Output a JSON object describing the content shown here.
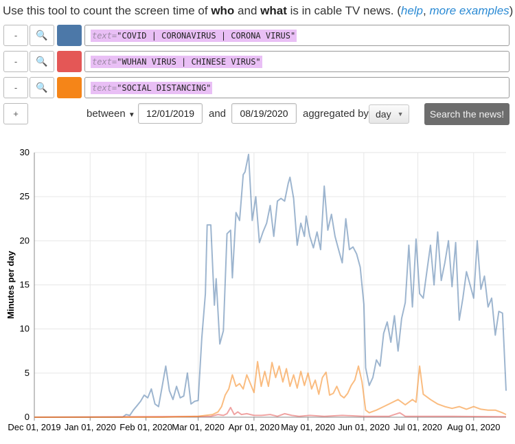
{
  "intro": {
    "prefix": "Use this tool to count the screen time of ",
    "who": "who",
    "and": " and ",
    "what": "what",
    "suffix": " is in cable TV news. (",
    "help_link": "help",
    "comma": ", ",
    "examples_link": "more examples",
    "close": ")"
  },
  "queries": [
    {
      "remove_label": "-",
      "search_icon": "search-icon",
      "color": "#4c78a8",
      "key": "text=",
      "value": "\"COVID | CORONAVIRUS | CORONA VIRUS\""
    },
    {
      "remove_label": "-",
      "search_icon": "search-icon",
      "color": "#e45756",
      "key": "text=",
      "value": "\"WUHAN VIRUS | CHINESE VIRUS\""
    },
    {
      "remove_label": "-",
      "search_icon": "search-icon",
      "color": "#f58518",
      "key": "text=",
      "value": "\"SOCIAL DISTANCING\""
    }
  ],
  "controls": {
    "add_label": "+",
    "between_label": "between",
    "start_date": "12/01/2019",
    "and_label": "and",
    "end_date": "08/19/2020",
    "aggregated_label": "aggregated by",
    "aggregation": "day",
    "search_button": "Search the news!"
  },
  "chart_data": {
    "type": "line",
    "ylabel": "Minutes per day",
    "ylim": [
      0,
      30
    ],
    "yticks": [
      0,
      5,
      10,
      15,
      20,
      25,
      30
    ],
    "xlim": [
      "2019-12-01",
      "2020-08-19"
    ],
    "xticks": [
      {
        "date": "2019-12-01",
        "label": "Dec 01, 2019"
      },
      {
        "date": "2020-01-01",
        "label": "Jan 01, 2020"
      },
      {
        "date": "2020-02-01",
        "label": "Feb 01, 2020"
      },
      {
        "date": "2020-03-01",
        "label": "Mar 01, 2020"
      },
      {
        "date": "2020-04-01",
        "label": "Apr 01, 2020"
      },
      {
        "date": "2020-05-01",
        "label": "May 01, 2020"
      },
      {
        "date": "2020-06-01",
        "label": "Jun 01, 2020"
      },
      {
        "date": "2020-07-01",
        "label": "Jul 01, 2020"
      },
      {
        "date": "2020-08-01",
        "label": "Aug 01, 2020"
      }
    ],
    "grid": true,
    "series": [
      {
        "color": "#4c78a8",
        "points": [
          [
            "2019-12-01",
            0
          ],
          [
            "2020-01-19",
            0
          ],
          [
            "2020-01-21",
            0.3
          ],
          [
            "2020-01-23",
            0.2
          ],
          [
            "2020-01-25",
            0.8
          ],
          [
            "2020-01-27",
            1.3
          ],
          [
            "2020-01-29",
            1.8
          ],
          [
            "2020-01-31",
            2.5
          ],
          [
            "2020-02-02",
            2.2
          ],
          [
            "2020-02-04",
            3.2
          ],
          [
            "2020-02-06",
            1.5
          ],
          [
            "2020-02-08",
            1.2
          ],
          [
            "2020-02-10",
            3.5
          ],
          [
            "2020-02-12",
            5.8
          ],
          [
            "2020-02-14",
            3.0
          ],
          [
            "2020-02-16",
            2.0
          ],
          [
            "2020-02-18",
            3.5
          ],
          [
            "2020-02-20",
            2.2
          ],
          [
            "2020-02-22",
            2.4
          ],
          [
            "2020-02-24",
            5.0
          ],
          [
            "2020-02-26",
            1.5
          ],
          [
            "2020-02-28",
            1.8
          ],
          [
            "2020-03-01",
            1.9
          ],
          [
            "2020-03-03",
            9.0
          ],
          [
            "2020-03-05",
            14.0
          ],
          [
            "2020-03-06",
            21.8
          ],
          [
            "2020-03-08",
            21.8
          ],
          [
            "2020-03-10",
            12.7
          ],
          [
            "2020-03-11",
            15.7
          ],
          [
            "2020-03-13",
            8.3
          ],
          [
            "2020-03-15",
            9.8
          ],
          [
            "2020-03-17",
            20.8
          ],
          [
            "2020-03-19",
            21.2
          ],
          [
            "2020-03-20",
            15.8
          ],
          [
            "2020-03-22",
            23.2
          ],
          [
            "2020-03-24",
            22.3
          ],
          [
            "2020-03-26",
            27.5
          ],
          [
            "2020-03-27",
            27.8
          ],
          [
            "2020-03-29",
            29.8
          ],
          [
            "2020-03-31",
            22.3
          ],
          [
            "2020-04-02",
            25.0
          ],
          [
            "2020-04-04",
            19.8
          ],
          [
            "2020-04-06",
            21.0
          ],
          [
            "2020-04-08",
            22.0
          ],
          [
            "2020-04-10",
            24.0
          ],
          [
            "2020-04-12",
            20.5
          ],
          [
            "2020-04-14",
            24.5
          ],
          [
            "2020-04-16",
            24.8
          ],
          [
            "2020-04-18",
            24.5
          ],
          [
            "2020-04-20",
            26.5
          ],
          [
            "2020-04-21",
            27.2
          ],
          [
            "2020-04-23",
            24.8
          ],
          [
            "2020-04-25",
            19.5
          ],
          [
            "2020-04-27",
            22.0
          ],
          [
            "2020-04-29",
            20.5
          ],
          [
            "2020-04-30",
            22.8
          ],
          [
            "2020-05-02",
            20.5
          ],
          [
            "2020-05-04",
            19.2
          ],
          [
            "2020-05-06",
            21.0
          ],
          [
            "2020-05-08",
            19.0
          ],
          [
            "2020-05-10",
            26.2
          ],
          [
            "2020-05-12",
            21.2
          ],
          [
            "2020-05-14",
            23.0
          ],
          [
            "2020-05-16",
            20.5
          ],
          [
            "2020-05-18",
            19.0
          ],
          [
            "2020-05-20",
            17.5
          ],
          [
            "2020-05-22",
            22.5
          ],
          [
            "2020-05-24",
            19.0
          ],
          [
            "2020-05-26",
            19.3
          ],
          [
            "2020-05-28",
            18.5
          ],
          [
            "2020-05-30",
            17.0
          ],
          [
            "2020-06-01",
            12.8
          ],
          [
            "2020-06-02",
            5.6
          ],
          [
            "2020-06-04",
            3.6
          ],
          [
            "2020-06-06",
            4.5
          ],
          [
            "2020-06-08",
            6.5
          ],
          [
            "2020-06-10",
            5.8
          ],
          [
            "2020-06-12",
            9.5
          ],
          [
            "2020-06-14",
            10.8
          ],
          [
            "2020-06-16",
            8.5
          ],
          [
            "2020-06-18",
            11.5
          ],
          [
            "2020-06-20",
            7.5
          ],
          [
            "2020-06-22",
            11.2
          ],
          [
            "2020-06-24",
            13.0
          ],
          [
            "2020-06-26",
            19.5
          ],
          [
            "2020-06-28",
            12.5
          ],
          [
            "2020-06-30",
            20.2
          ],
          [
            "2020-07-02",
            14.0
          ],
          [
            "2020-07-04",
            13.5
          ],
          [
            "2020-07-06",
            16.5
          ],
          [
            "2020-07-08",
            19.5
          ],
          [
            "2020-07-10",
            15.0
          ],
          [
            "2020-07-12",
            21.0
          ],
          [
            "2020-07-14",
            15.5
          ],
          [
            "2020-07-16",
            17.5
          ],
          [
            "2020-07-18",
            20.0
          ],
          [
            "2020-07-20",
            14.8
          ],
          [
            "2020-07-22",
            19.8
          ],
          [
            "2020-07-24",
            11.0
          ],
          [
            "2020-07-26",
            13.5
          ],
          [
            "2020-07-28",
            16.5
          ],
          [
            "2020-07-30",
            15.0
          ],
          [
            "2020-08-01",
            13.5
          ],
          [
            "2020-08-03",
            20.0
          ],
          [
            "2020-08-05",
            14.5
          ],
          [
            "2020-08-07",
            16.0
          ],
          [
            "2020-08-09",
            12.5
          ],
          [
            "2020-08-11",
            13.5
          ],
          [
            "2020-08-13",
            9.3
          ],
          [
            "2020-08-15",
            12.0
          ],
          [
            "2020-08-17",
            11.8
          ],
          [
            "2020-08-19",
            3.0
          ]
        ]
      },
      {
        "color": "#e45756",
        "points": [
          [
            "2019-12-01",
            0
          ],
          [
            "2020-03-08",
            0.1
          ],
          [
            "2020-03-12",
            0.3
          ],
          [
            "2020-03-15",
            0.2
          ],
          [
            "2020-03-17",
            0.4
          ],
          [
            "2020-03-19",
            1.1
          ],
          [
            "2020-03-21",
            0.3
          ],
          [
            "2020-03-23",
            0.6
          ],
          [
            "2020-03-25",
            0.3
          ],
          [
            "2020-03-28",
            0.4
          ],
          [
            "2020-04-01",
            0.2
          ],
          [
            "2020-04-05",
            0.2
          ],
          [
            "2020-04-10",
            0.3
          ],
          [
            "2020-04-14",
            0.1
          ],
          [
            "2020-04-18",
            0.4
          ],
          [
            "2020-04-22",
            0.2
          ],
          [
            "2020-04-26",
            0.1
          ],
          [
            "2020-05-02",
            0.2
          ],
          [
            "2020-05-10",
            0.1
          ],
          [
            "2020-05-20",
            0.2
          ],
          [
            "2020-06-01",
            0.1
          ],
          [
            "2020-06-15",
            0.1
          ],
          [
            "2020-06-21",
            0.5
          ],
          [
            "2020-06-24",
            0.1
          ],
          [
            "2020-07-05",
            0.1
          ],
          [
            "2020-07-20",
            0.1
          ],
          [
            "2020-08-19",
            0.05
          ]
        ]
      },
      {
        "color": "#f58518",
        "points": [
          [
            "2019-12-01",
            0
          ],
          [
            "2020-02-10",
            0
          ],
          [
            "2020-03-01",
            0.1
          ],
          [
            "2020-03-05",
            0.2
          ],
          [
            "2020-03-09",
            0.3
          ],
          [
            "2020-03-12",
            0.6
          ],
          [
            "2020-03-14",
            1.2
          ],
          [
            "2020-03-16",
            2.5
          ],
          [
            "2020-03-18",
            3.2
          ],
          [
            "2020-03-20",
            4.8
          ],
          [
            "2020-03-22",
            3.5
          ],
          [
            "2020-03-24",
            3.8
          ],
          [
            "2020-03-26",
            3.2
          ],
          [
            "2020-03-28",
            4.8
          ],
          [
            "2020-03-30",
            3.8
          ],
          [
            "2020-04-01",
            2.8
          ],
          [
            "2020-04-03",
            6.3
          ],
          [
            "2020-04-05",
            3.5
          ],
          [
            "2020-04-07",
            5.2
          ],
          [
            "2020-04-09",
            3.5
          ],
          [
            "2020-04-11",
            6.2
          ],
          [
            "2020-04-13",
            4.5
          ],
          [
            "2020-04-15",
            5.8
          ],
          [
            "2020-04-17",
            4.0
          ],
          [
            "2020-04-19",
            5.5
          ],
          [
            "2020-04-21",
            3.5
          ],
          [
            "2020-04-23",
            4.8
          ],
          [
            "2020-04-25",
            3.3
          ],
          [
            "2020-04-27",
            5.2
          ],
          [
            "2020-04-29",
            3.6
          ],
          [
            "2020-05-01",
            5.0
          ],
          [
            "2020-05-03",
            3.2
          ],
          [
            "2020-05-05",
            4.2
          ],
          [
            "2020-05-07",
            2.6
          ],
          [
            "2020-05-09",
            4.5
          ],
          [
            "2020-05-11",
            5.1
          ],
          [
            "2020-05-13",
            2.5
          ],
          [
            "2020-05-15",
            2.7
          ],
          [
            "2020-05-17",
            3.5
          ],
          [
            "2020-05-19",
            2.5
          ],
          [
            "2020-05-21",
            2.2
          ],
          [
            "2020-05-23",
            2.7
          ],
          [
            "2020-05-25",
            3.6
          ],
          [
            "2020-05-27",
            4.2
          ],
          [
            "2020-05-29",
            5.8
          ],
          [
            "2020-05-31",
            4.0
          ],
          [
            "2020-06-02",
            0.8
          ],
          [
            "2020-06-04",
            0.5
          ],
          [
            "2020-06-08",
            0.8
          ],
          [
            "2020-06-12",
            1.2
          ],
          [
            "2020-06-16",
            1.6
          ],
          [
            "2020-06-20",
            2.0
          ],
          [
            "2020-06-24",
            1.4
          ],
          [
            "2020-06-28",
            2.0
          ],
          [
            "2020-06-30",
            1.7
          ],
          [
            "2020-07-02",
            5.8
          ],
          [
            "2020-07-04",
            2.6
          ],
          [
            "2020-07-08",
            2.0
          ],
          [
            "2020-07-12",
            1.5
          ],
          [
            "2020-07-16",
            1.2
          ],
          [
            "2020-07-20",
            1.0
          ],
          [
            "2020-07-24",
            1.2
          ],
          [
            "2020-07-28",
            0.9
          ],
          [
            "2020-08-01",
            1.2
          ],
          [
            "2020-08-05",
            0.9
          ],
          [
            "2020-08-09",
            0.8
          ],
          [
            "2020-08-13",
            0.8
          ],
          [
            "2020-08-17",
            0.5
          ],
          [
            "2020-08-19",
            0.3
          ]
        ]
      }
    ]
  }
}
